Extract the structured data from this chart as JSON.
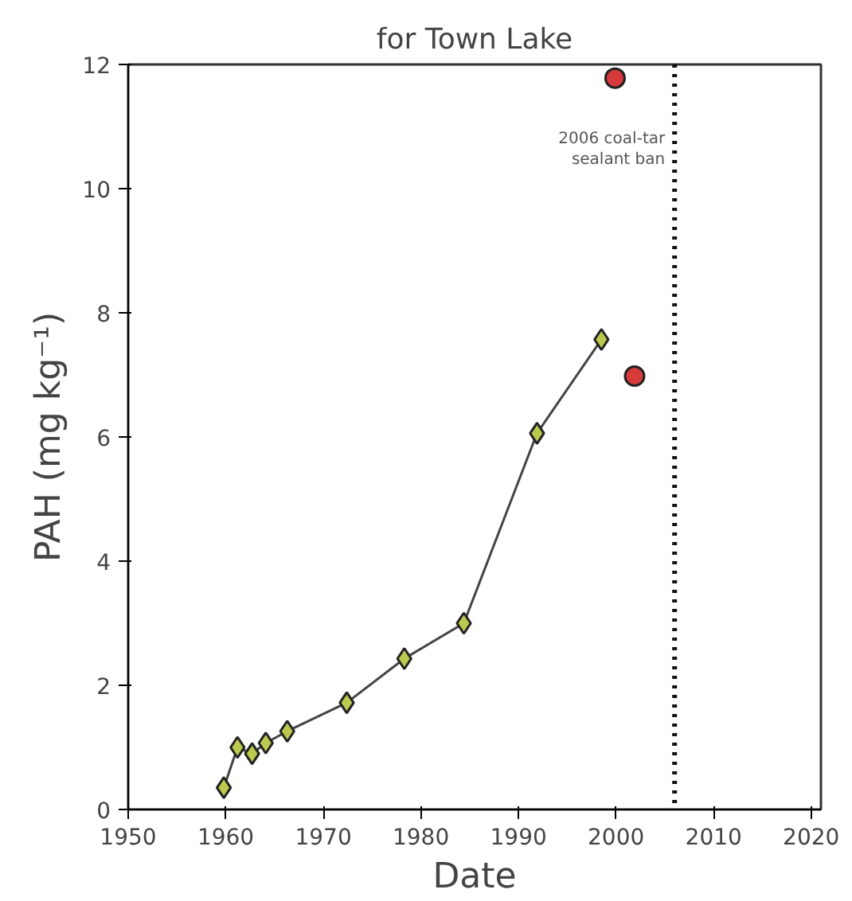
{
  "chart_data": {
    "type": "line",
    "title": "for Town Lake",
    "xlabel": "Date",
    "ylabel": "PAH (mg kg⁻¹)",
    "xlim": [
      1950,
      2021
    ],
    "xticks": [
      1950,
      1960,
      1970,
      1980,
      1990,
      2000,
      2010,
      2020
    ],
    "ylim": [
      0,
      12
    ],
    "yticks": [
      0,
      2,
      4,
      6,
      8,
      10,
      12
    ],
    "grid": false,
    "series": [
      {
        "marker": "diamond",
        "color": "#bcc94f",
        "x": [
          1959.8,
          1961.2,
          1962.7,
          1964.1,
          1966.3,
          1972.4,
          1978.3,
          1984.4,
          1991.9,
          1998.5
        ],
        "values": [
          0.35,
          1.0,
          0.9,
          1.07,
          1.26,
          1.72,
          2.43,
          3.0,
          6.06,
          7.57
        ]
      },
      {
        "type": "scatter",
        "marker": "circle",
        "color": "#d63a3a",
        "x": [
          1999.9,
          2001.9
        ],
        "values": [
          11.78,
          6.98
        ]
      }
    ],
    "ref_lines": [
      {
        "axis": "x",
        "value": 2006,
        "label": "2006 coal-tar\nsealant ban",
        "line_style": "dotted",
        "color": "#111111"
      }
    ]
  }
}
